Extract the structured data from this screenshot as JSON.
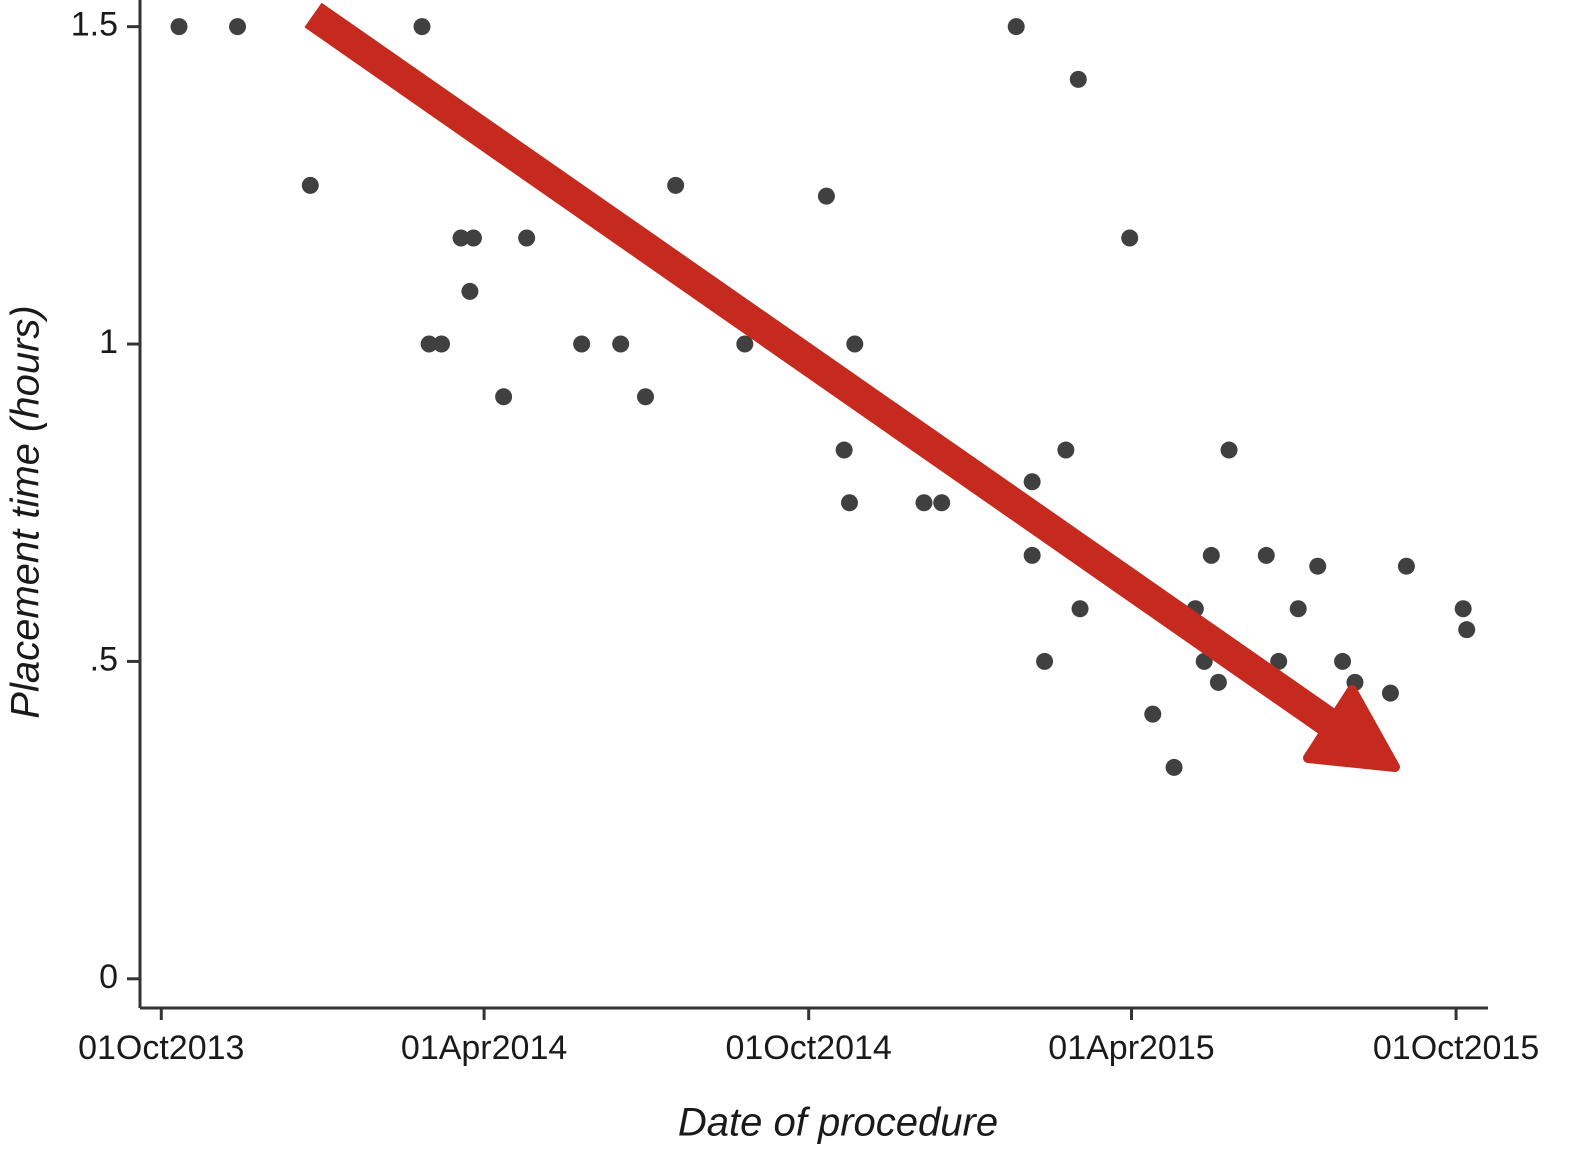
{
  "chart_data": {
    "type": "scatter",
    "x_label": "Date of procedure",
    "y_label": "Placement time (hours)",
    "color": "#404040",
    "x": [
      "2013-10-11",
      "2013-11-13",
      "2013-12-24",
      "2014-02-25",
      "2014-03-01",
      "2014-03-08",
      "2014-03-19",
      "2014-03-26",
      "2014-03-24",
      "2014-04-12",
      "2014-04-25",
      "2014-05-26",
      "2014-06-17",
      "2014-07-01",
      "2014-07-18",
      "2014-08-26",
      "2014-10-11",
      "2014-10-21",
      "2014-10-24",
      "2014-10-27",
      "2014-12-05",
      "2014-12-15",
      "2015-01-26",
      "2015-02-04",
      "2015-02-04",
      "2015-02-11",
      "2015-02-23",
      "2015-03-02",
      "2015-03-03",
      "2015-03-31",
      "2015-04-13",
      "2015-04-25",
      "2015-05-07",
      "2015-05-12",
      "2015-05-16",
      "2015-05-20",
      "2015-05-26",
      "2015-05-30",
      "2015-06-16",
      "2015-06-23",
      "2015-07-04",
      "2015-07-15",
      "2015-07-29",
      "2015-08-05",
      "2015-08-25",
      "2015-09-03",
      "2015-10-05",
      "2015-10-07"
    ],
    "values": [
      1.5,
      1.5,
      1.25,
      1.5,
      1.0,
      1.0,
      1.167,
      1.167,
      1.083,
      0.917,
      1.167,
      1.0,
      1.0,
      0.917,
      1.25,
      1.0,
      1.233,
      0.833,
      0.75,
      1.0,
      0.75,
      0.75,
      1.5,
      0.667,
      0.783,
      0.5,
      0.833,
      1.417,
      0.583,
      1.167,
      0.417,
      0.333,
      0.583,
      0.5,
      0.667,
      0.467,
      0.833,
      0.5,
      0.667,
      0.5,
      0.583,
      0.65,
      0.5,
      0.467,
      0.45,
      0.65,
      0.583,
      0.55
    ],
    "xlim": [
      "2013-09-19",
      "2015-10-19"
    ],
    "xticks": [
      {
        "value": "2013-10-01",
        "label": "01Oct2013"
      },
      {
        "value": "2014-04-01",
        "label": "01Apr2014"
      },
      {
        "value": "2014-10-01",
        "label": "01Oct2014"
      },
      {
        "value": "2015-04-01",
        "label": "01Apr2015"
      },
      {
        "value": "2015-10-01",
        "label": "01Oct2015"
      }
    ],
    "ylim": [
      -0.046,
      1.542
    ],
    "yticks": [
      0,
      {
        "value": 0.5,
        "label": ".5"
      },
      1,
      1.5
    ]
  }
}
